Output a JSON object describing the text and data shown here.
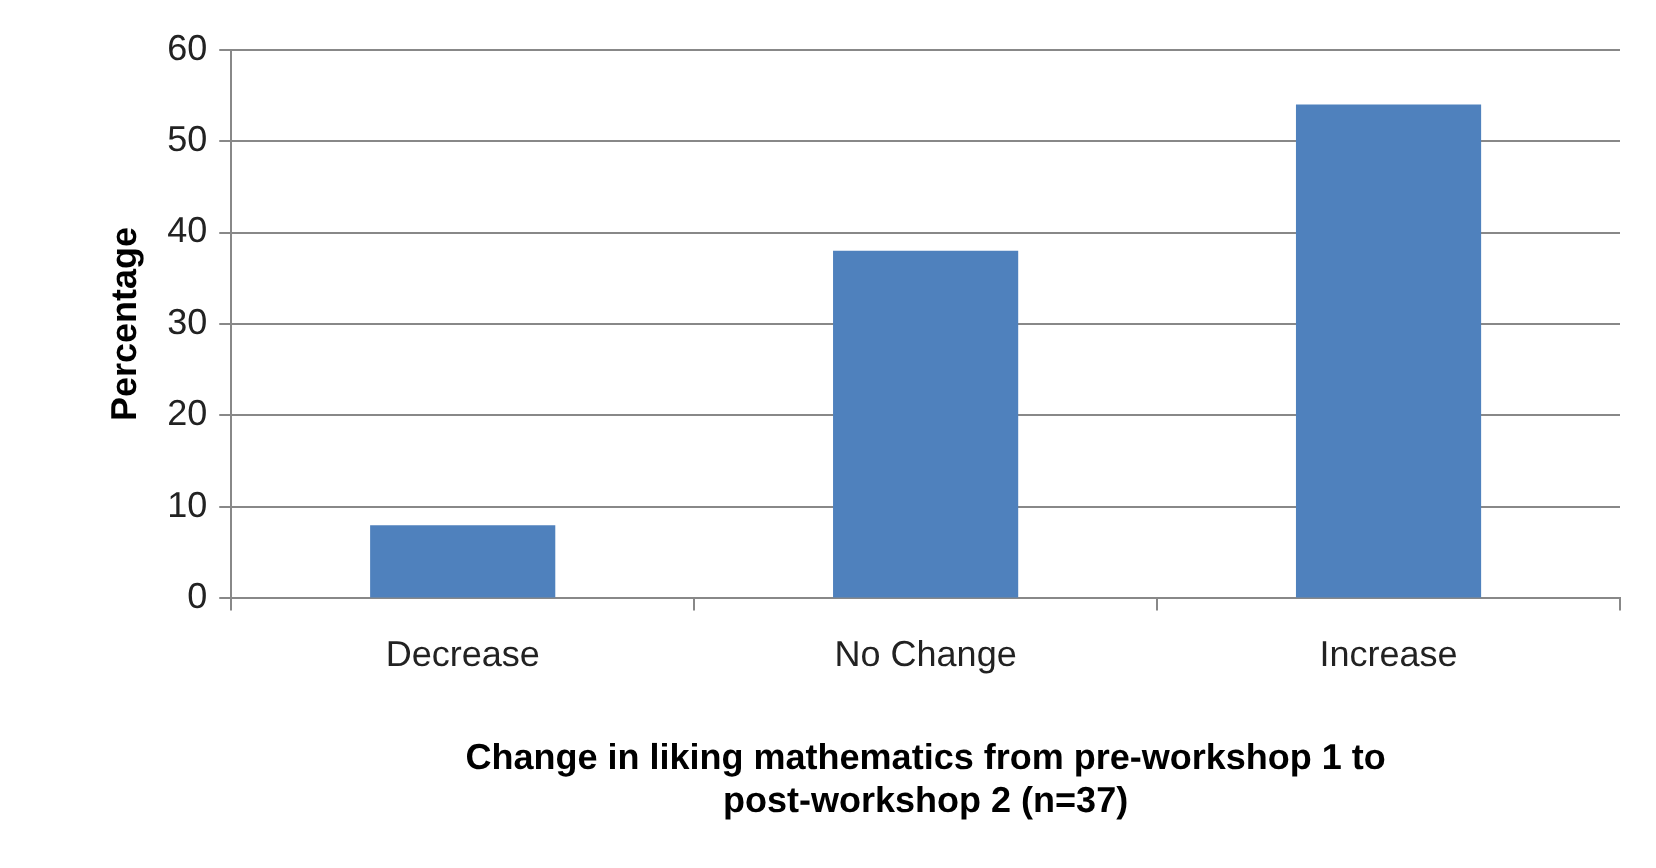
{
  "chart_data": {
    "type": "bar",
    "xlabel": "Change in liking mathematics from pre-workshop 1 to post-workshop 2 (n=37)",
    "ylabel": "Percentage",
    "categories": [
      "Decrease",
      "No Change",
      "Increase"
    ],
    "values": [
      8,
      38,
      54
    ],
    "color": "#4f81bd",
    "ylim": [
      0,
      60
    ],
    "yticks": [
      0,
      10,
      20,
      30,
      40,
      50,
      60
    ],
    "grid": "y",
    "legend": false
  }
}
